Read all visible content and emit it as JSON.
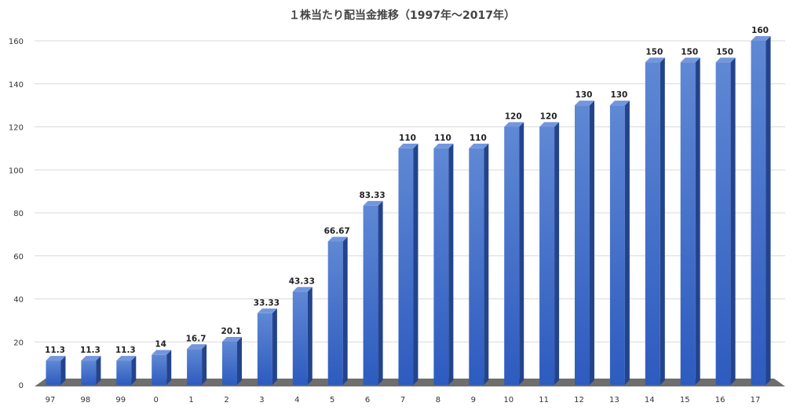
{
  "chart_data": {
    "type": "bar",
    "title": "１株当たり配当金推移（1997年～2017年）",
    "xlabel": "",
    "ylabel": "",
    "categories": [
      "97",
      "98",
      "99",
      "0",
      "1",
      "2",
      "3",
      "4",
      "5",
      "6",
      "7",
      "8",
      "9",
      "10",
      "11",
      "12",
      "13",
      "14",
      "15",
      "16",
      "17"
    ],
    "series": [
      {
        "values": [
          11.3,
          11.3,
          11.3,
          14,
          16.7,
          20.1,
          33.33,
          43.33,
          66.67,
          83.33,
          110,
          110,
          110,
          120,
          120,
          130,
          130,
          150,
          150,
          150,
          160
        ],
        "labels": [
          "11.3",
          "11.3",
          "11.3",
          "14",
          "16.7",
          "20.1",
          "33.33",
          "43.33",
          "66.67",
          "83.33",
          "110",
          "110",
          "110",
          "120",
          "120",
          "130",
          "130",
          "150",
          "150",
          "150",
          "160"
        ]
      }
    ],
    "ylim": [
      0,
      160
    ],
    "yticks": [
      "0",
      "20",
      "40",
      "60",
      "80",
      "100",
      "120",
      "140",
      "160"
    ],
    "grid": true,
    "legend": "none",
    "colors": {
      "bar_front_top": "#5f88d4",
      "bar_front_bottom": "#2d5bbf",
      "bar_side": "#23448c",
      "bar_top": "#7396dc",
      "floor": "#6e6e6e"
    }
  }
}
